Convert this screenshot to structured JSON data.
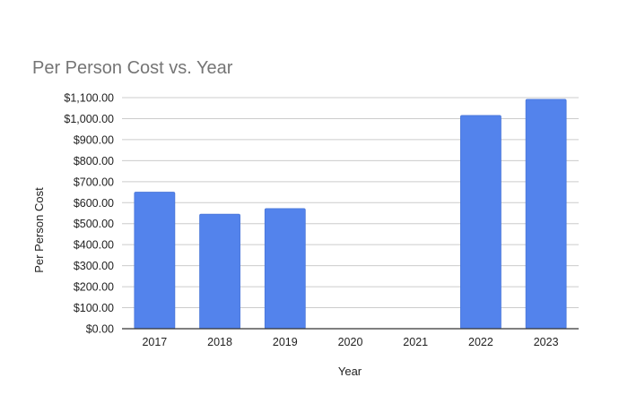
{
  "chart_data": {
    "type": "bar",
    "title": "Per Person Cost vs. Year",
    "xlabel": "Year",
    "ylabel": "Per Person Cost",
    "categories": [
      "2017",
      "2018",
      "2019",
      "2020",
      "2021",
      "2022",
      "2023"
    ],
    "series": [
      {
        "values": [
          650,
          545,
          572,
          0,
          0,
          1015,
          1092
        ],
        "color": "#5383ec"
      }
    ],
    "ylim": [
      0,
      1100
    ],
    "yticks": [
      0,
      100,
      200,
      300,
      400,
      500,
      600,
      700,
      800,
      900,
      1000,
      1100
    ],
    "ytick_labels": [
      "$0.00",
      "$100.00",
      "$200.00",
      "$300.00",
      "$400.00",
      "$500.00",
      "$600.00",
      "$700.00",
      "$800.00",
      "$900.00",
      "$1,000.00",
      "$1,100.00"
    ],
    "grid": true,
    "legend": "none"
  }
}
